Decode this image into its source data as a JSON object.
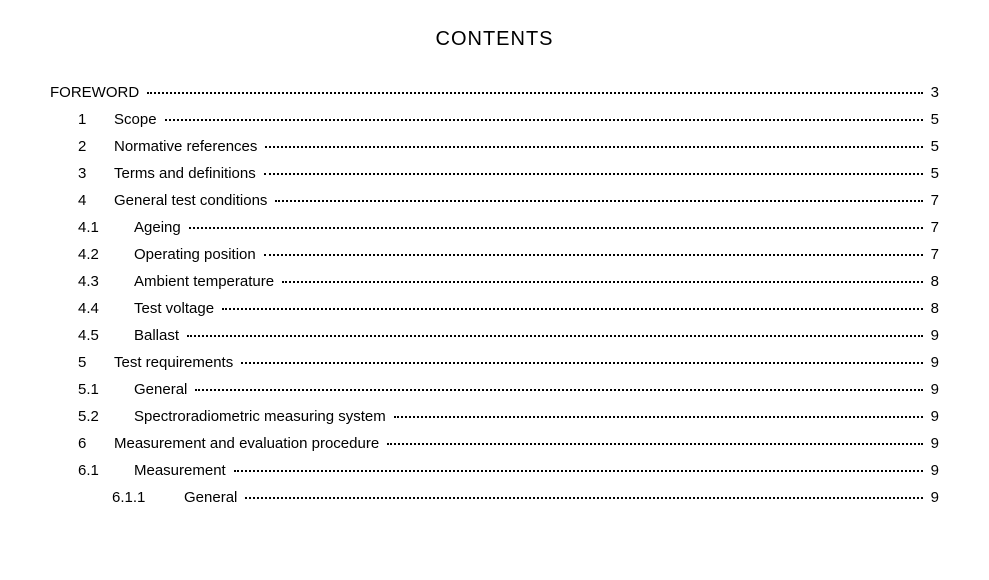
{
  "heading": "CONTENTS",
  "entries": [
    {
      "level": 0,
      "num": "",
      "title": "FOREWORD",
      "page": "3"
    },
    {
      "level": 1,
      "num": "1",
      "title": "Scope",
      "page": "5"
    },
    {
      "level": 1,
      "num": "2",
      "title": "Normative references",
      "page": "5"
    },
    {
      "level": 1,
      "num": "3",
      "title": "Terms and definitions",
      "page": "5"
    },
    {
      "level": 1,
      "num": "4",
      "title": "General test conditions",
      "page": "7"
    },
    {
      "level": 2,
      "num": "4.1",
      "title": "Ageing",
      "page": "7"
    },
    {
      "level": 2,
      "num": "4.2",
      "title": "Operating position",
      "page": "7"
    },
    {
      "level": 2,
      "num": "4.3",
      "title": "Ambient temperature",
      "page": "8"
    },
    {
      "level": 2,
      "num": "4.4",
      "title": "Test voltage",
      "page": "8"
    },
    {
      "level": 2,
      "num": "4.5",
      "title": "Ballast",
      "page": "9"
    },
    {
      "level": 1,
      "num": "5",
      "title": "Test requirements",
      "page": "9"
    },
    {
      "level": 2,
      "num": "5.1",
      "title": "General",
      "page": "9"
    },
    {
      "level": 2,
      "num": "5.2",
      "title": "Spectroradiometric measuring system",
      "page": "9"
    },
    {
      "level": 1,
      "num": "6",
      "title": "Measurement and evaluation procedure",
      "page": "9"
    },
    {
      "level": 2,
      "num": "6.1",
      "title": "Measurement",
      "page": "9"
    },
    {
      "level": 3,
      "num": "6.1.1",
      "title": "General",
      "page": "9"
    }
  ]
}
